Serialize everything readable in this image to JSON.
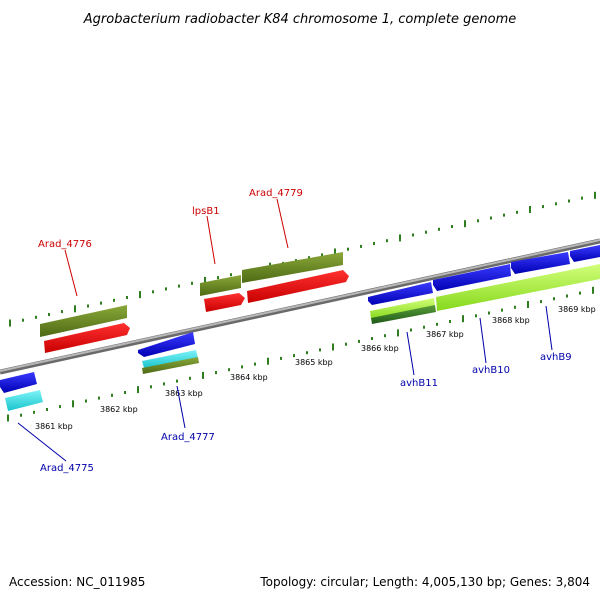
{
  "title": "Agrobacterium radiobacter K84 chromosome 1, complete genome",
  "footer": {
    "accession": "Accession: NC_011985",
    "topology": "Topology: circular; Length: 4,005,130 bp; Genes: 3,804"
  },
  "colors": {
    "backbone": "#8c8c8c",
    "tick": "#2e7d1e",
    "label_red": "#cc0000",
    "label_blue": "#0000aa",
    "olive": "#6b8c23",
    "red": "#ff0000",
    "blue": "#1414e0",
    "cyan": "#33e0e8",
    "lime": "#a8f03c",
    "darkgreen": "#3a7a2a"
  },
  "scale": {
    "ticks": [
      {
        "label": "3861 kbp"
      },
      {
        "label": "3862 kbp"
      },
      {
        "label": "3863 kbp"
      },
      {
        "label": "3864 kbp"
      },
      {
        "label": "3865 kbp"
      },
      {
        "label": "3866 kbp"
      },
      {
        "label": "3867 kbp"
      },
      {
        "label": "3868 kbp"
      },
      {
        "label": "3869 kbp"
      }
    ]
  },
  "gene_labels": [
    {
      "text": "Arad_4776",
      "color": "red"
    },
    {
      "text": "lpsB1",
      "color": "red"
    },
    {
      "text": "Arad_4779",
      "color": "red"
    },
    {
      "text": "Arad_4775",
      "color": "blue"
    },
    {
      "text": "Arad_4777",
      "color": "blue"
    },
    {
      "text": "avhB11",
      "color": "blue"
    },
    {
      "text": "avhB10",
      "color": "blue"
    },
    {
      "text": "avhB9",
      "color": "blue"
    }
  ]
}
